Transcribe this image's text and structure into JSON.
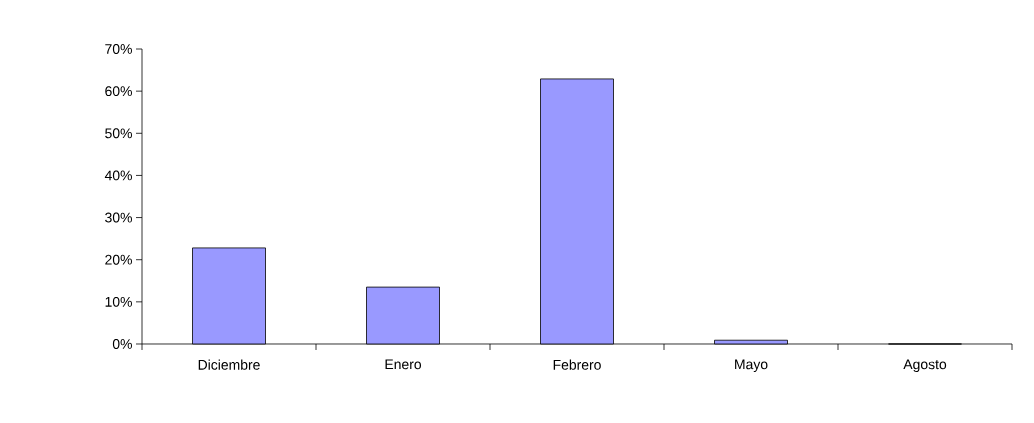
{
  "chart_data": {
    "type": "bar",
    "categories": [
      "Diciembre",
      "Enero",
      "Febrero",
      "Mayo",
      "Agosto"
    ],
    "values": [
      22.8,
      13.5,
      62.9,
      0.9,
      0
    ],
    "color": "#9999ff",
    "ylim": [
      0,
      70
    ],
    "yticks": [
      {
        "value": 0,
        "label": "0%"
      },
      {
        "value": 10,
        "label": "10%"
      },
      {
        "value": 20,
        "label": "20%"
      },
      {
        "value": 30,
        "label": "30%"
      },
      {
        "value": 40,
        "label": "40%"
      },
      {
        "value": 50,
        "label": "50%"
      },
      {
        "value": 60,
        "label": "60%"
      },
      {
        "value": 70,
        "label": "70%"
      }
    ],
    "grid": false
  }
}
